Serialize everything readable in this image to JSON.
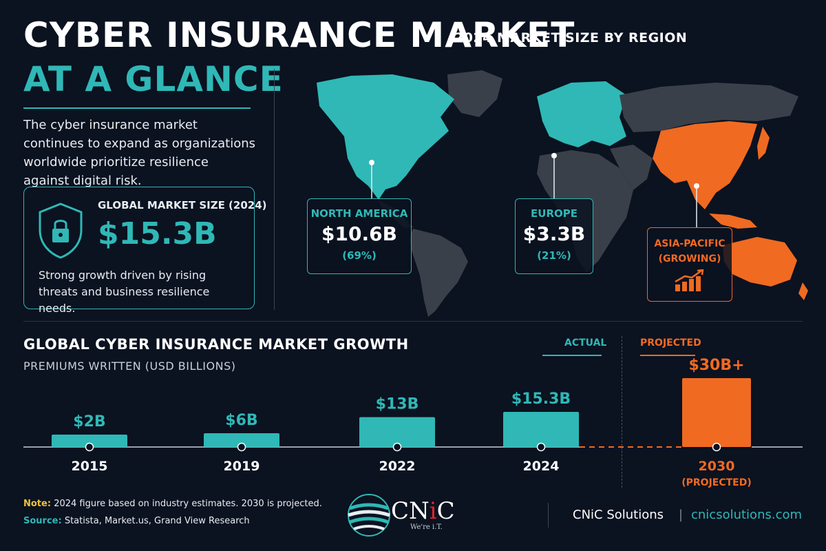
{
  "header": {
    "title_line1": "CYBER INSURANCE MARKET",
    "title_line2": "AT A GLANCE",
    "intro": "The cyber insurance market continues to expand as organizations worldwide prioritize resilience against digital risk."
  },
  "global_market": {
    "label": "GLOBAL MARKET SIZE (2024)",
    "value": "$15.3B",
    "note": "Strong growth driven by rising threats and business resilience needs.",
    "icon": "shield-lock-icon"
  },
  "map": {
    "title": "2024 MARKET SIZE BY REGION",
    "regions": [
      {
        "name": "NORTH AMERICA",
        "value": "$10.6B",
        "share": "(69%)"
      },
      {
        "name": "EUROPE",
        "value": "$3.3B",
        "share": "(21%)"
      },
      {
        "name": "ASIA-PACIFIC",
        "status": "(GROWING)"
      }
    ]
  },
  "growth": {
    "title": "GLOBAL CYBER INSURANCE MARKET GROWTH",
    "subtitle": "PREMIUMS WRITTEN (USD BILLIONS)",
    "actual_label": "ACTUAL",
    "projected_label": "PROJECTED",
    "projected_sub": "(PROJECTED)"
  },
  "chart_data": {
    "type": "bar",
    "title": "GLOBAL CYBER INSURANCE MARKET GROWTH",
    "ylabel": "PREMIUMS WRITTEN (USD BILLIONS)",
    "categories": [
      "2015",
      "2019",
      "2022",
      "2024",
      "2030"
    ],
    "values": [
      2,
      6,
      13,
      15.3,
      30
    ],
    "data_labels": [
      "$2B",
      "$6B",
      "$13B",
      "$15.3B",
      "$30B+"
    ],
    "status": [
      "actual",
      "actual",
      "actual",
      "actual",
      "projected"
    ],
    "ylim": [
      0,
      30
    ],
    "grid": false
  },
  "footer": {
    "note_label": "Note:",
    "note_text": "2024 figure based on industry estimates. 2030 is projected.",
    "source_label": "Source:",
    "source_text": "Statista, Market.us, Grand View Research",
    "logo_text_before": "CN",
    "logo_text_i": "i",
    "logo_text_after": "C",
    "tagline": "We're i.T.",
    "company": "CNiC Solutions",
    "separator": "|",
    "website": "cnicsolutions.com"
  },
  "colors": {
    "background": "#0b1220",
    "teal": "#2fb8b6",
    "orange": "#f06a22",
    "land": "#3a4049"
  }
}
